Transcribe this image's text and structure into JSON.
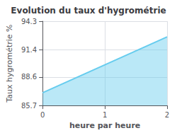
{
  "chart_data": {
    "type": "area",
    "title": "Evolution du taux d'hygrométrie",
    "xlabel": "heure par heure",
    "ylabel": "Taux hygrométrie %",
    "x": [
      0,
      2
    ],
    "values": [
      87.0,
      92.7
    ],
    "color": "#66ccee",
    "xlim": [
      0,
      2
    ],
    "xticks": [
      0,
      1,
      2
    ],
    "ylim": [
      85.7,
      94.3
    ],
    "yticks": [
      85.7,
      88.6,
      91.4,
      94.3
    ],
    "grid": true
  }
}
